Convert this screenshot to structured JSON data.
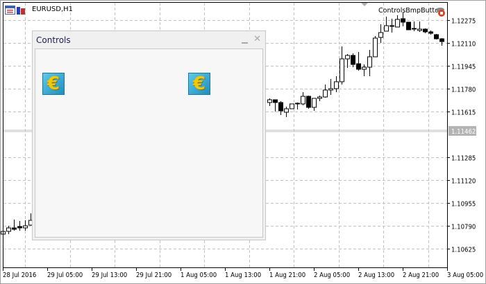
{
  "window": {
    "symbol_title": "EURUSD,H1",
    "expert_name": "ControlsBmpButton"
  },
  "panel": {
    "title": "Controls",
    "minimize_icon": "minimize-icon",
    "close_icon": "close-icon",
    "buttons": [
      {
        "icon": "euro-bitmap-icon",
        "symbol": "€"
      },
      {
        "icon": "euro-bitmap-icon",
        "symbol": "€"
      }
    ]
  },
  "chart_data": {
    "type": "candlestick",
    "symbol": "EURUSD",
    "timeframe": "H1",
    "grid": true,
    "bid_price": "1.11462",
    "colors": {
      "bull_body": "#ffffff",
      "bear_body": "#000000",
      "bid_line": "#c0c0c0",
      "bid_label_bg": "#b4b4b4"
    },
    "price_ticks": [
      "1.12275",
      "1.12110",
      "1.11945",
      "1.11780",
      "1.11615",
      "1.11285",
      "1.11120",
      "1.10955",
      "1.10790",
      "1.10625"
    ],
    "time_ticks": [
      "28 Jul 2016",
      "29 Jul 05:00",
      "29 Jul 13:00",
      "29 Jul 21:00",
      "1 Aug 05:00",
      "1 Aug 13:00",
      "1 Aug 21:00",
      "2 Aug 05:00",
      "2 Aug 13:00",
      "2 Aug 21:00",
      "3 Aug 05:00"
    ],
    "candles": [
      {
        "i": 0,
        "o": 1.1073,
        "h": 1.1075,
        "l": 1.10725,
        "c": 1.1075
      },
      {
        "i": 1,
        "o": 1.1075,
        "h": 1.1079,
        "l": 1.1073,
        "c": 1.10775
      },
      {
        "i": 2,
        "o": 1.10775,
        "h": 1.10835,
        "l": 1.10755,
        "c": 1.10765
      },
      {
        "i": 3,
        "o": 1.10785,
        "h": 1.10825,
        "l": 1.10755,
        "c": 1.10775
      },
      {
        "i": 4,
        "o": 1.10775,
        "h": 1.1083,
        "l": 1.10755,
        "c": 1.1079
      },
      {
        "i": 5,
        "o": 1.10795,
        "h": 1.1088,
        "l": 1.1079,
        "c": 1.1083
      },
      {
        "i": 48,
        "o": 1.1168,
        "h": 1.1171,
        "l": 1.11655,
        "c": 1.117
      },
      {
        "i": 49,
        "o": 1.117,
        "h": 1.117,
        "l": 1.11615,
        "c": 1.1168
      },
      {
        "i": 50,
        "o": 1.1168,
        "h": 1.1169,
        "l": 1.1159,
        "c": 1.1162
      },
      {
        "i": 51,
        "o": 1.1161,
        "h": 1.1165,
        "l": 1.11575,
        "c": 1.11635
      },
      {
        "i": 52,
        "o": 1.11635,
        "h": 1.1167,
        "l": 1.11635,
        "c": 1.1167
      },
      {
        "i": 53,
        "o": 1.11675,
        "h": 1.1168,
        "l": 1.1163,
        "c": 1.1167
      },
      {
        "i": 54,
        "o": 1.1167,
        "h": 1.11755,
        "l": 1.1166,
        "c": 1.11725
      },
      {
        "i": 55,
        "o": 1.11725,
        "h": 1.1173,
        "l": 1.11635,
        "c": 1.11645
      },
      {
        "i": 56,
        "o": 1.11645,
        "h": 1.1171,
        "l": 1.1162,
        "c": 1.1171
      },
      {
        "i": 57,
        "o": 1.1171,
        "h": 1.1173,
        "l": 1.1169,
        "c": 1.1172
      },
      {
        "i": 58,
        "o": 1.1172,
        "h": 1.1181,
        "l": 1.11715,
        "c": 1.1177
      },
      {
        "i": 59,
        "o": 1.1177,
        "h": 1.1185,
        "l": 1.11735,
        "c": 1.1178
      },
      {
        "i": 60,
        "o": 1.1178,
        "h": 1.1187,
        "l": 1.11755,
        "c": 1.1183
      },
      {
        "i": 61,
        "o": 1.1183,
        "h": 1.12085,
        "l": 1.1181,
        "c": 1.11995
      },
      {
        "i": 62,
        "o": 1.11995,
        "h": 1.1203,
        "l": 1.1193,
        "c": 1.1202
      },
      {
        "i": 63,
        "o": 1.1202,
        "h": 1.12035,
        "l": 1.11935,
        "c": 1.11955
      },
      {
        "i": 64,
        "o": 1.1196,
        "h": 1.12045,
        "l": 1.1191,
        "c": 1.1192
      },
      {
        "i": 65,
        "o": 1.1192,
        "h": 1.11955,
        "l": 1.1187,
        "c": 1.11935
      },
      {
        "i": 66,
        "o": 1.11935,
        "h": 1.1206,
        "l": 1.1187,
        "c": 1.1201
      },
      {
        "i": 67,
        "o": 1.1201,
        "h": 1.1216,
        "l": 1.1201,
        "c": 1.12145
      },
      {
        "i": 68,
        "o": 1.1215,
        "h": 1.12245,
        "l": 1.1211,
        "c": 1.12185
      },
      {
        "i": 69,
        "o": 1.12195,
        "h": 1.123,
        "l": 1.12195,
        "c": 1.12235
      },
      {
        "i": 70,
        "o": 1.12235,
        "h": 1.12285,
        "l": 1.12185,
        "c": 1.1223
      },
      {
        "i": 71,
        "o": 1.12225,
        "h": 1.1231,
        "l": 1.12225,
        "c": 1.1228
      },
      {
        "i": 72,
        "o": 1.12285,
        "h": 1.1233,
        "l": 1.1223,
        "c": 1.1226
      },
      {
        "i": 73,
        "o": 1.1226,
        "h": 1.1226,
        "l": 1.12205,
        "c": 1.12205
      },
      {
        "i": 74,
        "o": 1.12215,
        "h": 1.12265,
        "l": 1.12195,
        "c": 1.1221
      },
      {
        "i": 75,
        "o": 1.122,
        "h": 1.12265,
        "l": 1.1219,
        "c": 1.1221
      },
      {
        "i": 76,
        "o": 1.1221,
        "h": 1.12215,
        "l": 1.1218,
        "c": 1.1219
      },
      {
        "i": 77,
        "o": 1.1219,
        "h": 1.122,
        "l": 1.1217,
        "c": 1.1218
      },
      {
        "i": 78,
        "o": 1.1217,
        "h": 1.12175,
        "l": 1.12135,
        "c": 1.1214
      },
      {
        "i": 79,
        "o": 1.1214,
        "h": 1.12145,
        "l": 1.1209,
        "c": 1.1212
      }
    ]
  }
}
